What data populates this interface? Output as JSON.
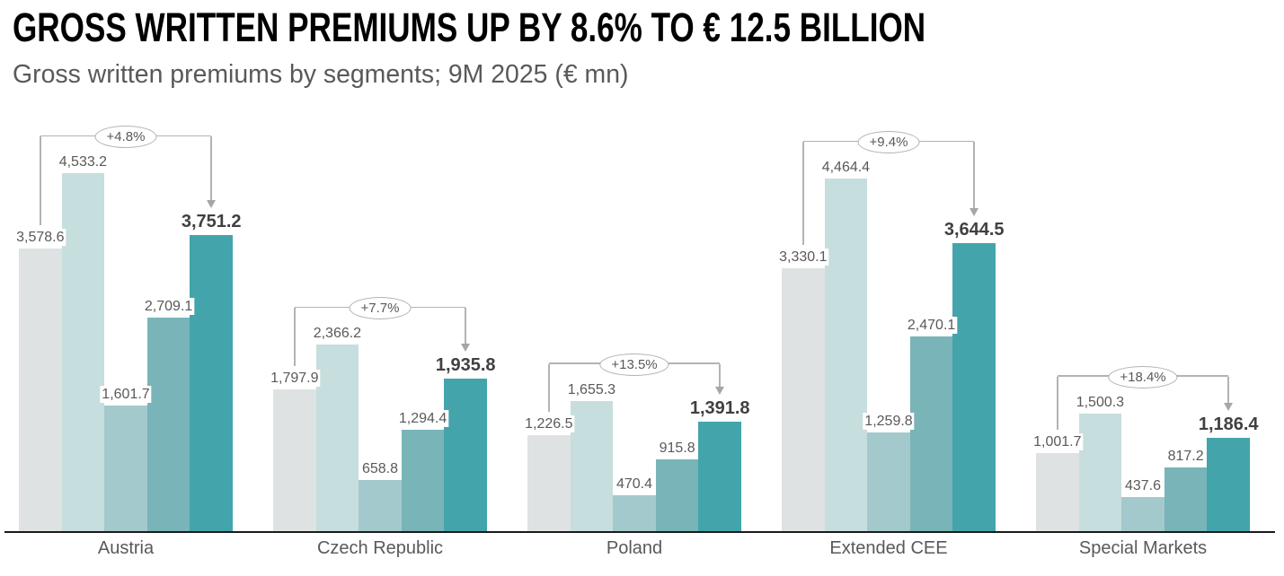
{
  "header": {
    "title": "GROSS WRITTEN PREMIUMS UP BY 8.6% TO € 12.5 BILLION",
    "subtitle": "Gross written premiums by segments; 9M 2025 (€ mn)"
  },
  "chart_data": {
    "type": "bar",
    "title": "Gross written premiums by segments; 9M 2025 (€ mn)",
    "unit": "€ mn",
    "grid": false,
    "value_axis": {
      "visible": false,
      "min": 0,
      "max": 4533.2
    },
    "bars_per_group": 5,
    "bar_colors": [
      "#dfe2e3",
      "#c6dedd",
      "#a3c9cc",
      "#79b4b8",
      "#44a4ab"
    ],
    "categories": [
      "Austria",
      "Czech Republic",
      "Poland",
      "Extended CEE",
      "Special Markets"
    ],
    "groups": [
      {
        "category": "Austria",
        "values": [
          3578.6,
          4533.2,
          1601.7,
          2709.1,
          3751.2
        ],
        "value_labels": [
          "3,578.6",
          "4,533.2",
          "1,601.7",
          "2,709.1",
          "3,751.2"
        ],
        "change_label": "+4.8%"
      },
      {
        "category": "Czech Republic",
        "values": [
          1797.9,
          2366.2,
          658.8,
          1294.4,
          1935.8
        ],
        "value_labels": [
          "1,797.9",
          "2,366.2",
          "658.8",
          "1,294.4",
          "1,935.8"
        ],
        "change_label": "+7.7%"
      },
      {
        "category": "Poland",
        "values": [
          1226.5,
          1655.3,
          470.4,
          915.8,
          1391.8
        ],
        "value_labels": [
          "1,226.5",
          "1,655.3",
          "470.4",
          "915.8",
          "1,391.8"
        ],
        "change_label": "+13.5%"
      },
      {
        "category": "Extended CEE",
        "values": [
          3330.1,
          4464.4,
          1259.8,
          2470.1,
          3644.5
        ],
        "value_labels": [
          "3,330.1",
          "4,464.4",
          "1,259.8",
          "2,470.1",
          "3,644.5"
        ],
        "change_label": "+9.4%"
      },
      {
        "category": "Special Markets",
        "values": [
          1001.7,
          1500.3,
          437.6,
          817.2,
          1186.4
        ],
        "value_labels": [
          "1,001.7",
          "1,500.3",
          "437.6",
          "817.2",
          "1,186.4"
        ],
        "change_label": "+18.4%"
      }
    ],
    "annotation": "ellipse with change percentage, bracket from first bar top with arrow down to last bar",
    "colors": {
      "value_label": "#595959",
      "final_value_label": "#404040",
      "category_label": "#595959",
      "annotation_line": "#b3b3b3",
      "baseline": "#1a1a1a",
      "title": "#000000",
      "subtitle": "#595959"
    }
  }
}
